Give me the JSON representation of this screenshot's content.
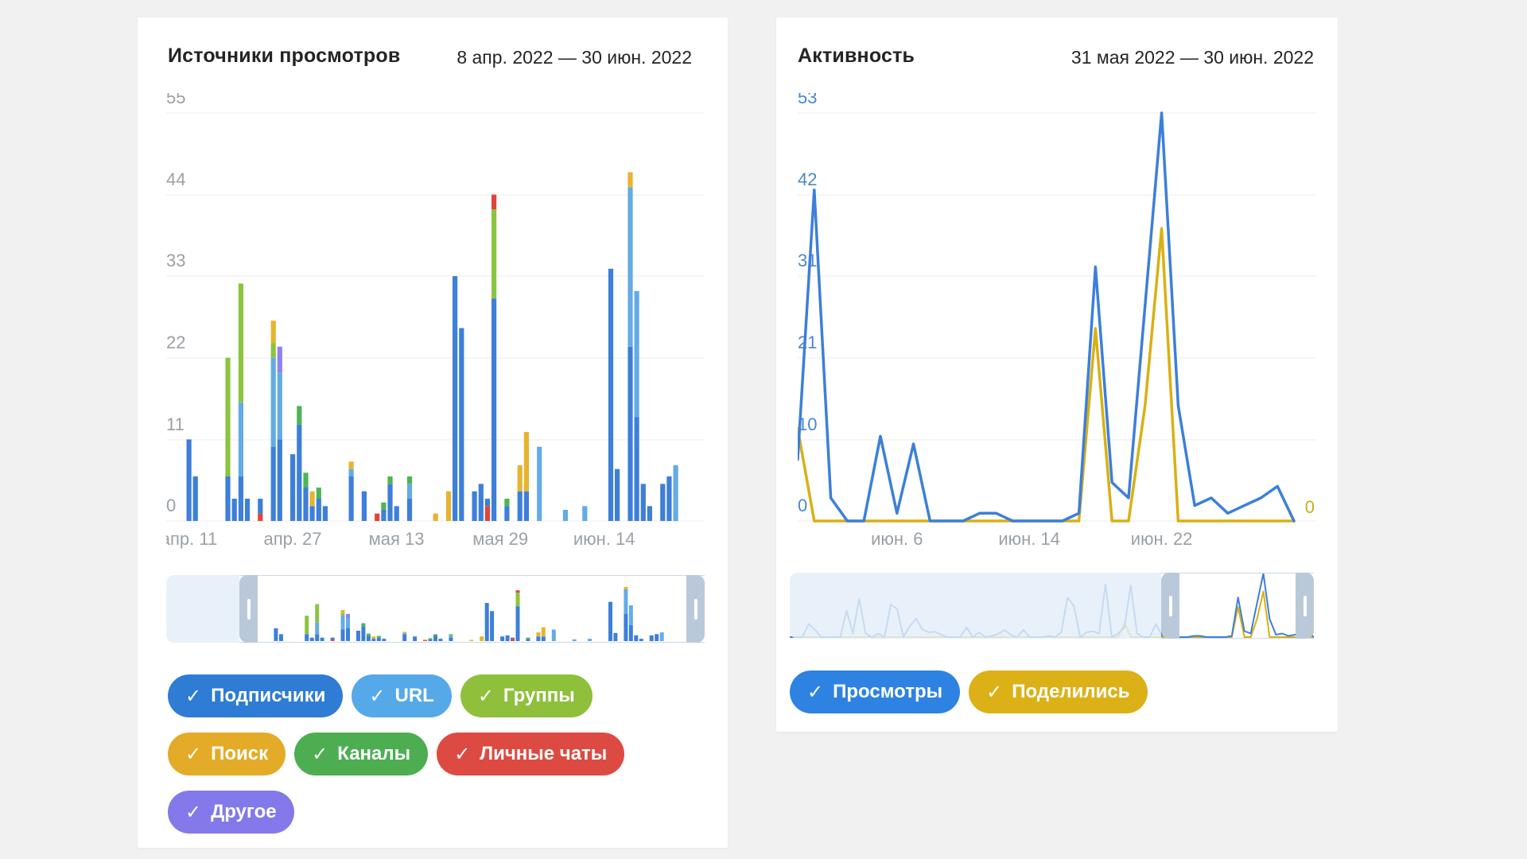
{
  "page": {
    "background": "#f1f1f1"
  },
  "cards": [
    {
      "title": "Источники просмотров",
      "date_range": "8 апр. 2022 — 30 июн. 2022",
      "legend_rows": [
        [
          {
            "label": "Подписчики",
            "color": "#2e7cd3",
            "checked": true
          },
          {
            "label": "URL",
            "color": "#55a9e8",
            "checked": true
          },
          {
            "label": "Группы",
            "color": "#8ec03c",
            "checked": true
          }
        ],
        [
          {
            "label": "Поиск",
            "color": "#e3ab27",
            "checked": true
          },
          {
            "label": "Каналы",
            "color": "#4cae50",
            "checked": true
          },
          {
            "label": "Личные чаты",
            "color": "#dd4a42",
            "checked": true
          }
        ],
        [
          {
            "label": "Другое",
            "color": "#8379ea",
            "checked": true
          }
        ]
      ]
    },
    {
      "title": "Активность",
      "date_range": "31 мая 2022 — 30 июн. 2022",
      "legend_rows": [
        [
          {
            "label": "Просмотры",
            "color": "#2e82e2",
            "checked": true
          },
          {
            "label": "Поделились",
            "color": "#dcb117",
            "checked": true
          }
        ]
      ]
    }
  ],
  "chart_data": [
    {
      "type": "bar",
      "stacked": true,
      "title": "Источники просмотров",
      "x_range": [
        "апр. 8",
        "июн. 30"
      ],
      "xlabel": "",
      "ylabel": "",
      "ylim": [
        0,
        55
      ],
      "grid": true,
      "y_ticks": [
        0,
        11,
        22,
        33,
        44,
        55
      ],
      "x_ticks": [
        {
          "label": "апр. 11",
          "day": 3
        },
        {
          "label": "апр. 27",
          "day": 19
        },
        {
          "label": "мая 13",
          "day": 35
        },
        {
          "label": "мая 29",
          "day": 51
        },
        {
          "label": "июн. 14",
          "day": 67
        }
      ],
      "series_labels": {
        "subs": "Подписчики",
        "url": "URL",
        "groups": "Группы",
        "search": "Поиск",
        "channels": "Каналы",
        "private": "Личные чаты",
        "other": "Другое"
      },
      "series_colors": {
        "subs": "#3d7fd9",
        "url": "#64abe6",
        "groups": "#8bc440",
        "search": "#e8b42e",
        "channels": "#4db553",
        "private": "#e2443a",
        "other": "#8f83f0"
      },
      "bars": [
        {
          "d": 3,
          "s": [
            [
              "subs",
              11
            ]
          ]
        },
        {
          "d": 4,
          "s": [
            [
              "subs",
              6
            ]
          ]
        },
        {
          "d": 9,
          "s": [
            [
              "subs",
              6
            ],
            [
              "groups",
              16
            ]
          ]
        },
        {
          "d": 10,
          "s": [
            [
              "subs",
              3
            ]
          ]
        },
        {
          "d": 11,
          "s": [
            [
              "subs",
              6
            ],
            [
              "url",
              10
            ],
            [
              "groups",
              16
            ]
          ]
        },
        {
          "d": 12,
          "s": [
            [
              "subs",
              3
            ]
          ]
        },
        {
          "d": 14,
          "s": [
            [
              "private",
              1
            ],
            [
              "subs",
              2
            ]
          ]
        },
        {
          "d": 16,
          "s": [
            [
              "subs",
              10
            ],
            [
              "url",
              12
            ],
            [
              "groups",
              2
            ],
            [
              "search",
              3
            ]
          ]
        },
        {
          "d": 17,
          "s": [
            [
              "subs",
              11
            ],
            [
              "url",
              9
            ],
            [
              "other",
              3.5
            ]
          ]
        },
        {
          "d": 19,
          "s": [
            [
              "subs",
              9
            ]
          ]
        },
        {
          "d": 20,
          "s": [
            [
              "subs",
              13
            ],
            [
              "channels",
              2.5
            ]
          ]
        },
        {
          "d": 21,
          "s": [
            [
              "subs",
              4.5
            ],
            [
              "channels",
              2
            ]
          ]
        },
        {
          "d": 22,
          "s": [
            [
              "subs",
              2
            ],
            [
              "search",
              2
            ]
          ]
        },
        {
          "d": 23,
          "s": [
            [
              "subs",
              3
            ],
            [
              "channels",
              1.5
            ]
          ]
        },
        {
          "d": 24,
          "s": [
            [
              "subs",
              2
            ]
          ]
        },
        {
          "d": 28,
          "s": [
            [
              "subs",
              6
            ],
            [
              "url",
              1
            ],
            [
              "search",
              1
            ]
          ]
        },
        {
          "d": 30,
          "s": [
            [
              "subs",
              4
            ]
          ]
        },
        {
          "d": 32,
          "s": [
            [
              "private",
              1
            ]
          ]
        },
        {
          "d": 33,
          "s": [
            [
              "subs",
              1.5
            ],
            [
              "channels",
              1
            ]
          ]
        },
        {
          "d": 34,
          "s": [
            [
              "subs",
              5
            ],
            [
              "channels",
              1
            ]
          ]
        },
        {
          "d": 35,
          "s": [
            [
              "subs",
              2
            ]
          ]
        },
        {
          "d": 37,
          "s": [
            [
              "subs",
              3
            ],
            [
              "url",
              2
            ],
            [
              "channels",
              1
            ]
          ]
        },
        {
          "d": 41,
          "s": [
            [
              "search",
              1
            ]
          ]
        },
        {
          "d": 43,
          "s": [
            [
              "search",
              4
            ]
          ]
        },
        {
          "d": 44,
          "s": [
            [
              "subs",
              33
            ]
          ]
        },
        {
          "d": 45,
          "s": [
            [
              "subs",
              26
            ]
          ]
        },
        {
          "d": 47,
          "s": [
            [
              "subs",
              4
            ]
          ]
        },
        {
          "d": 48,
          "s": [
            [
              "subs",
              5
            ]
          ]
        },
        {
          "d": 49,
          "s": [
            [
              "private",
              2
            ],
            [
              "subs",
              1
            ]
          ]
        },
        {
          "d": 50,
          "s": [
            [
              "subs",
              30
            ],
            [
              "groups",
              12
            ],
            [
              "private",
              2
            ]
          ]
        },
        {
          "d": 52,
          "s": [
            [
              "subs",
              2
            ],
            [
              "channels",
              1
            ]
          ]
        },
        {
          "d": 54,
          "s": [
            [
              "subs",
              4
            ],
            [
              "search",
              3.5
            ]
          ]
        },
        {
          "d": 55,
          "s": [
            [
              "subs",
              4
            ],
            [
              "search",
              8
            ]
          ]
        },
        {
          "d": 57,
          "s": [
            [
              "url",
              10
            ]
          ]
        },
        {
          "d": 61,
          "s": [
            [
              "url",
              1.5
            ]
          ]
        },
        {
          "d": 64,
          "s": [
            [
              "url",
              2
            ]
          ]
        },
        {
          "d": 68,
          "s": [
            [
              "subs",
              34
            ]
          ]
        },
        {
          "d": 69,
          "s": [
            [
              "subs",
              7
            ]
          ]
        },
        {
          "d": 71,
          "s": [
            [
              "subs",
              23.5
            ],
            [
              "url",
              21.5
            ],
            [
              "search",
              2
            ]
          ]
        },
        {
          "d": 72,
          "s": [
            [
              "subs",
              14
            ],
            [
              "url",
              17
            ]
          ]
        },
        {
          "d": 73,
          "s": [
            [
              "subs",
              5
            ]
          ]
        },
        {
          "d": 74,
          "s": [
            [
              "subs",
              2
            ]
          ]
        },
        {
          "d": 76,
          "s": [
            [
              "subs",
              5
            ]
          ]
        },
        {
          "d": 77,
          "s": [
            [
              "subs",
              6
            ]
          ]
        },
        {
          "d": 78,
          "s": [
            [
              "url",
              7.5
            ]
          ]
        }
      ],
      "legend_position": "bottom"
    },
    {
      "type": "line",
      "title": "Активность",
      "x_range": [
        "31 мая",
        "30 июн."
      ],
      "xlabel": "",
      "ylabel": "",
      "ylim": [
        0,
        53
      ],
      "grid": true,
      "y_ticks_left": [
        0,
        10,
        21,
        31,
        42,
        53
      ],
      "y_tick_right_zero": "0",
      "x_ticks": [
        {
          "label": "июн. 6",
          "day": 6
        },
        {
          "label": "июн. 14",
          "day": 14
        },
        {
          "label": "июн. 22",
          "day": 22
        }
      ],
      "series": [
        {
          "name": "Просмотры",
          "color": "#3c7fd9",
          "values": [
            8,
            43,
            3,
            0,
            0,
            11,
            1,
            10,
            0,
            0,
            0,
            1,
            1,
            0,
            0,
            0,
            0,
            1,
            33,
            5,
            3,
            28,
            53,
            15,
            2,
            3,
            1,
            2,
            3,
            4.5,
            0
          ]
        },
        {
          "name": "Поделились",
          "color": "#d9b014",
          "values": [
            12,
            0,
            0,
            0,
            0,
            0,
            0,
            0,
            0,
            0,
            0,
            0,
            0,
            0,
            0,
            0,
            0,
            0,
            25,
            0,
            0,
            15,
            38,
            0,
            0,
            0,
            0,
            0,
            0,
            0,
            0
          ]
        }
      ],
      "legend_position": "bottom"
    }
  ],
  "axis_colors": {
    "gray_label": "#9aa0a6",
    "blue_label": "#4c87c9",
    "yellow_label": "#cbaa22",
    "gridline": "#ecedef"
  }
}
